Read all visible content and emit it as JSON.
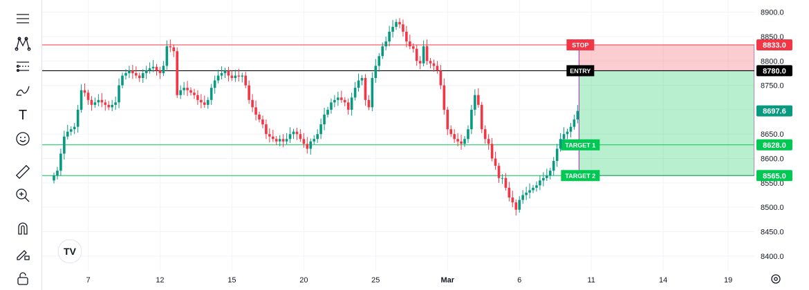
{
  "toolbar": {
    "tools": [
      "menu-lines-icon",
      "pattern-icon",
      "fib-levels-icon",
      "brush-icon",
      "text-icon",
      "emoji-icon",
      "ruler-icon",
      "zoom-in-icon",
      "magnet-icon",
      "lock-pencil-icon",
      "lock-icon"
    ],
    "text_tool_glyph": "T"
  },
  "logo": {
    "text": "TV"
  },
  "colors": {
    "up": "#089981",
    "down": "#f23645",
    "stop": "#f23645",
    "entry": "#000000",
    "target": "#00c853",
    "last_price": "#089981",
    "projection_border": "#9c27b0"
  },
  "chart_data": {
    "type": "candlestick",
    "ylim": [
      8370,
      8925
    ],
    "y_ticks": [
      8400.0,
      8450.0,
      8500.0,
      8550.0,
      8600.0,
      8650.0,
      8700.0,
      8750.0,
      8800.0,
      8850.0,
      8900.0
    ],
    "y_tick_labels": [
      "8400.0",
      "8450.0",
      "8500.0",
      "8550.0",
      "8600.0",
      "8650.0",
      "8700.0",
      "8750.0",
      "8800.0",
      "8850.0",
      "8900.0"
    ],
    "x_ticks": [
      {
        "label": "7",
        "index": 10
      },
      {
        "label": "12",
        "index": 31
      },
      {
        "label": "15",
        "index": 52
      },
      {
        "label": "20",
        "index": 73
      },
      {
        "label": "25",
        "index": 94
      },
      {
        "label": "Mar",
        "index": 115
      },
      {
        "label": "6",
        "index": 136
      },
      {
        "label": "11",
        "index": 157
      },
      {
        "label": "14",
        "index": 178
      },
      {
        "label": "19",
        "index": 197
      }
    ],
    "closes": [
      8565,
      8575,
      8610,
      8645,
      8655,
      8660,
      8665,
      8700,
      8740,
      8735,
      8720,
      8710,
      8715,
      8720,
      8715,
      8710,
      8705,
      8710,
      8715,
      8750,
      8770,
      8775,
      8780,
      8775,
      8770,
      8765,
      8775,
      8780,
      8785,
      8788,
      8780,
      8775,
      8790,
      8830,
      8828,
      8820,
      8730,
      8740,
      8745,
      8740,
      8735,
      8730,
      8720,
      8715,
      8710,
      8720,
      8745,
      8760,
      8770,
      8775,
      8780,
      8770,
      8765,
      8770,
      8768,
      8770,
      8750,
      8720,
      8705,
      8690,
      8680,
      8670,
      8650,
      8645,
      8640,
      8635,
      8640,
      8635,
      8640,
      8650,
      8655,
      8650,
      8640,
      8630,
      8620,
      8635,
      8640,
      8650,
      8670,
      8690,
      8700,
      8715,
      8720,
      8725,
      8720,
      8715,
      8700,
      8725,
      8745,
      8760,
      8765,
      8720,
      8705,
      8765,
      8790,
      8810,
      8830,
      8840,
      8860,
      8870,
      8880,
      8875,
      8860,
      8840,
      8830,
      8825,
      8800,
      8795,
      8830,
      8800,
      8795,
      8790,
      8780,
      8750,
      8700,
      8660,
      8650,
      8640,
      8635,
      8630,
      8640,
      8660,
      8700,
      8730,
      8710,
      8660,
      8640,
      8630,
      8600,
      8585,
      8560,
      8560,
      8540,
      8520,
      8510,
      8495,
      8515,
      8525,
      8530,
      8535,
      8540,
      8545,
      8555,
      8560,
      8565,
      8575,
      8595,
      8620,
      8640,
      8650,
      8655,
      8665,
      8680,
      8697.6
    ],
    "opens": [
      8555,
      8565,
      8575,
      8610,
      8645,
      8655,
      8660,
      8665,
      8700,
      8740,
      8735,
      8720,
      8710,
      8715,
      8720,
      8715,
      8710,
      8705,
      8710,
      8715,
      8750,
      8770,
      8775,
      8780,
      8775,
      8770,
      8765,
      8775,
      8780,
      8785,
      8788,
      8780,
      8775,
      8790,
      8830,
      8828,
      8820,
      8730,
      8740,
      8745,
      8740,
      8735,
      8730,
      8720,
      8715,
      8710,
      8720,
      8745,
      8760,
      8770,
      8775,
      8780,
      8770,
      8765,
      8770,
      8768,
      8770,
      8750,
      8720,
      8705,
      8690,
      8680,
      8670,
      8650,
      8645,
      8640,
      8635,
      8640,
      8635,
      8640,
      8650,
      8655,
      8650,
      8640,
      8630,
      8620,
      8635,
      8640,
      8650,
      8670,
      8690,
      8700,
      8715,
      8720,
      8725,
      8720,
      8715,
      8700,
      8725,
      8745,
      8760,
      8765,
      8720,
      8705,
      8765,
      8790,
      8810,
      8830,
      8840,
      8860,
      8870,
      8880,
      8875,
      8860,
      8840,
      8830,
      8825,
      8800,
      8795,
      8830,
      8800,
      8795,
      8790,
      8780,
      8750,
      8700,
      8660,
      8650,
      8640,
      8635,
      8630,
      8640,
      8660,
      8700,
      8730,
      8710,
      8660,
      8640,
      8630,
      8600,
      8585,
      8560,
      8560,
      8540,
      8520,
      8510,
      8495,
      8515,
      8525,
      8530,
      8535,
      8540,
      8545,
      8555,
      8560,
      8565,
      8575,
      8595,
      8620,
      8640,
      8650,
      8655,
      8665,
      8680
    ],
    "levels": {
      "stop": {
        "label": "STOP",
        "price": 8833.0,
        "price_label": "8833.0"
      },
      "entry": {
        "label": "ENTRY",
        "price": 8780.0,
        "price_label": "8780.0"
      },
      "target1": {
        "label": "TARGET 1",
        "price": 8628.0,
        "price_label": "8628.0"
      },
      "target2": {
        "label": "TARGET 2",
        "price": 8565.0,
        "price_label": "8565.0"
      }
    },
    "last_price": {
      "price": 8697.6,
      "label": "8697.6"
    }
  }
}
